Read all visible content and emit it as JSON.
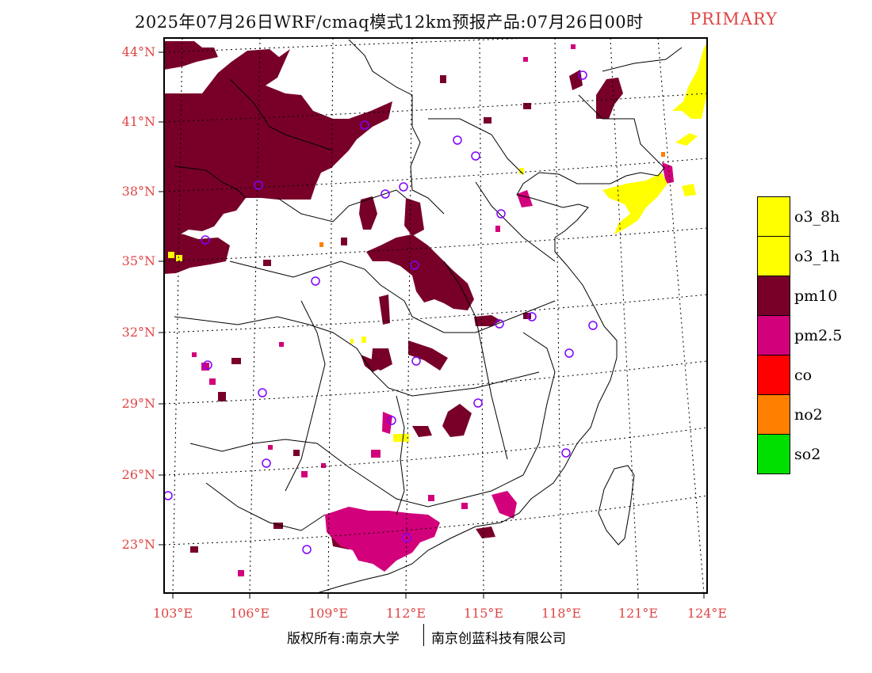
{
  "title": "2025年07月26日WRF/cmaq模式12km预报产品:07月26日00时",
  "title_tag": "PRIMARY",
  "map": {
    "latitude_labels": [
      "44°N",
      "41°N",
      "38°N",
      "35°N",
      "32°N",
      "29°N",
      "26°N",
      "23°N"
    ],
    "longitude_labels": [
      "103°E",
      "106°E",
      "109°E",
      "112°E",
      "115°E",
      "118°E",
      "121°E",
      "124°E"
    ],
    "layers": [
      "o3_8h",
      "pm10",
      "pm2.5",
      "no2"
    ]
  },
  "legend": {
    "items": [
      {
        "label": "o3_8h",
        "color": "#ffff00"
      },
      {
        "label": "o3_1h",
        "color": "#ffff00"
      },
      {
        "label": "pm10",
        "color": "#780028"
      },
      {
        "label": "pm2.5",
        "color": "#d2007a"
      },
      {
        "label": "co",
        "color": "#ff0000"
      },
      {
        "label": "no2",
        "color": "#ff7f00"
      },
      {
        "label": "so2",
        "color": "#00e000"
      }
    ]
  },
  "footer": {
    "left": "版权所有:南京大学",
    "right": "南京创蓝科技有限公司"
  },
  "colors": {
    "accent": "#e04444",
    "pm10": "#780028",
    "pm25": "#d2007a",
    "o3": "#ffff00",
    "no2": "#ff7f00"
  }
}
